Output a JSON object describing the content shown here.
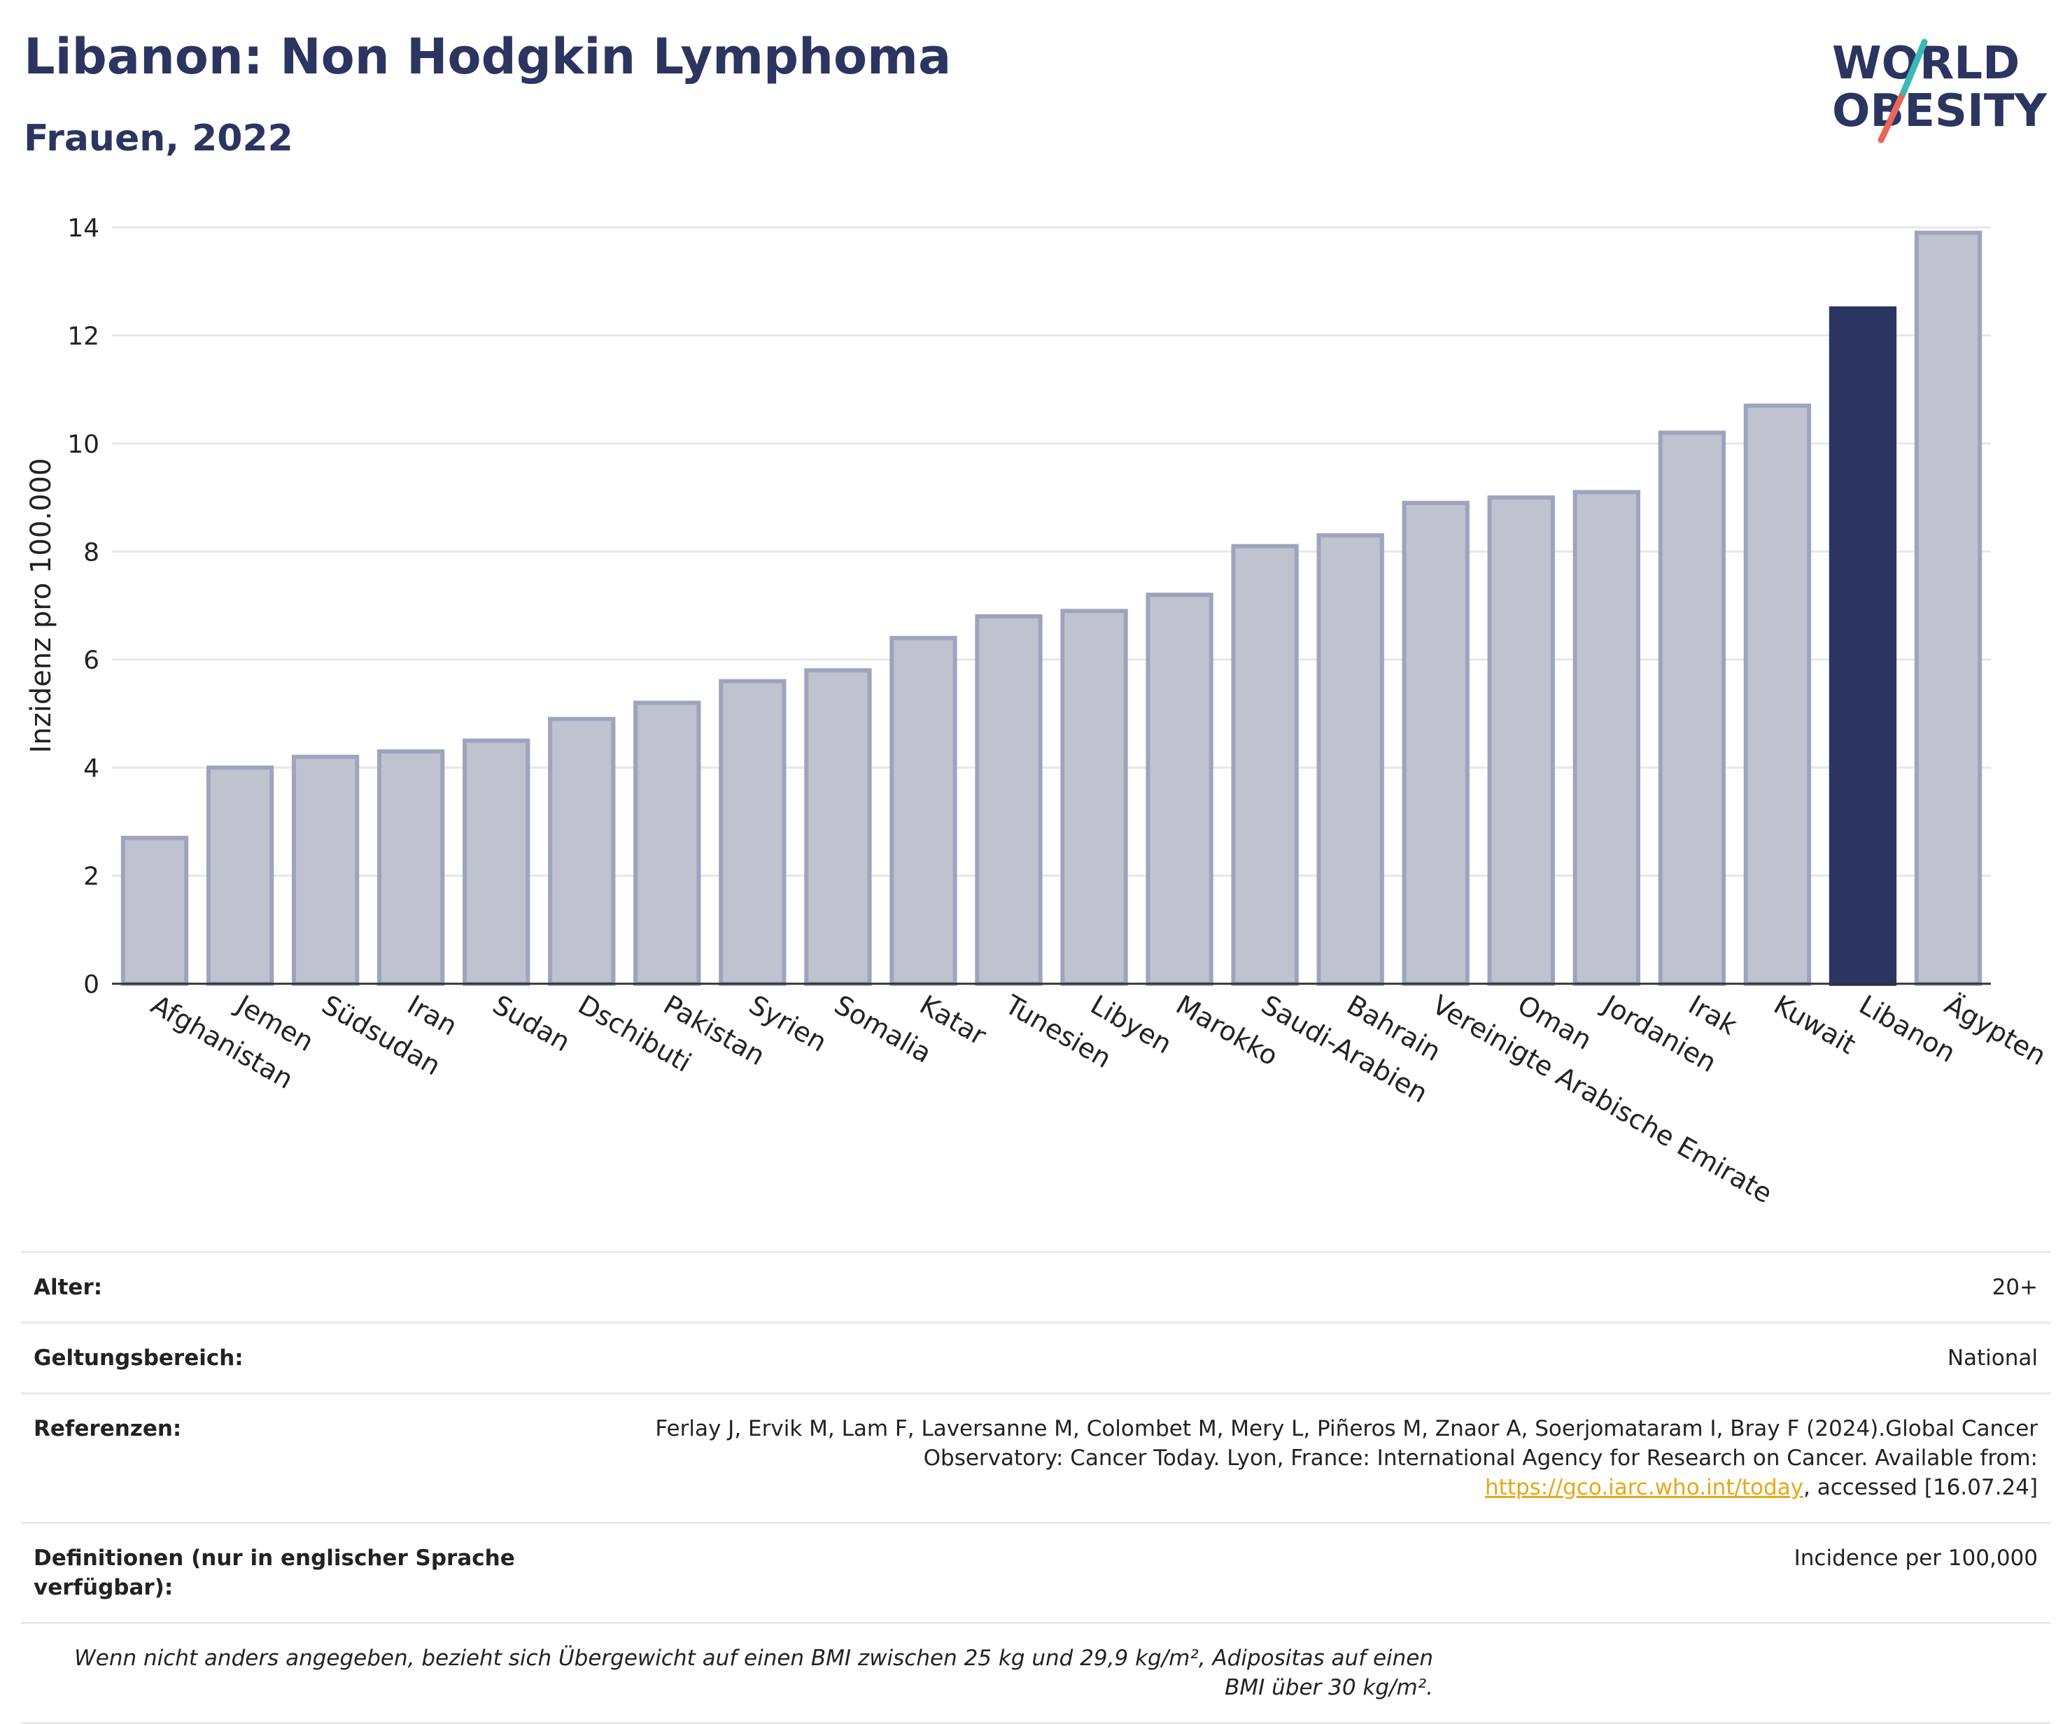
{
  "header": {
    "title": "Libanon: Non Hodgkin Lymphoma",
    "subtitle": "Frauen, 2022",
    "logo_line1": "WORLD",
    "logo_line2": "OBESITY"
  },
  "chart_data": {
    "type": "bar",
    "title": "Libanon: Non Hodgkin Lymphoma",
    "subtitle": "Frauen, 2022",
    "xlabel": "",
    "ylabel": "Inzidenz pro 100.000",
    "ylim": [
      0,
      14
    ],
    "yticks": [
      0,
      2,
      4,
      6,
      8,
      10,
      12,
      14
    ],
    "grid": true,
    "highlight": "Libanon",
    "colors": {
      "default": "#bfc3d0",
      "default_border": "#9ea4bc",
      "highlight": "#2b3560"
    },
    "categories": [
      "Afghanistan",
      "Jemen",
      "Südsudan",
      "Iran",
      "Sudan",
      "Dschibuti",
      "Pakistan",
      "Syrien",
      "Somalia",
      "Katar",
      "Tunesien",
      "Libyen",
      "Marokko",
      "Saudi-Arabien",
      "Bahrain",
      "Vereinigte Arabische Emirate",
      "Oman",
      "Jordanien",
      "Irak",
      "Kuwait",
      "Libanon",
      "Ägypten"
    ],
    "values": [
      2.7,
      4.0,
      4.2,
      4.3,
      4.5,
      4.9,
      5.2,
      5.6,
      5.8,
      6.4,
      6.8,
      6.9,
      7.2,
      8.1,
      8.3,
      8.9,
      9.0,
      9.1,
      10.2,
      10.7,
      12.5,
      13.9
    ]
  },
  "meta": {
    "age_label": "Alter:",
    "age_value": "20+",
    "scope_label": "Geltungsbereich:",
    "scope_value": "National",
    "ref_label": "Referenzen:",
    "ref_text_1": "Ferlay J, Ervik M, Lam F, Laversanne M, Colombet M, Mery L, Piñeros M, Znaor A, Soerjomataram I, Bray F (2024).Global Cancer Observatory: Cancer Today. Lyon, France: International Agency for Research on Cancer. Available from: ",
    "ref_link": "https://gco.iarc.who.int/today",
    "ref_text_2": ", accessed [16.07.24]",
    "def_label": "Definitionen (nur in englischer Sprache verfügbar):",
    "def_value": "Incidence per 100,000",
    "note": "Wenn nicht anders angegeben, bezieht sich Übergewicht auf einen BMI zwischen 25 kg und 29,9 kg/m², Adipositas auf einen BMI über 30 kg/m²."
  }
}
